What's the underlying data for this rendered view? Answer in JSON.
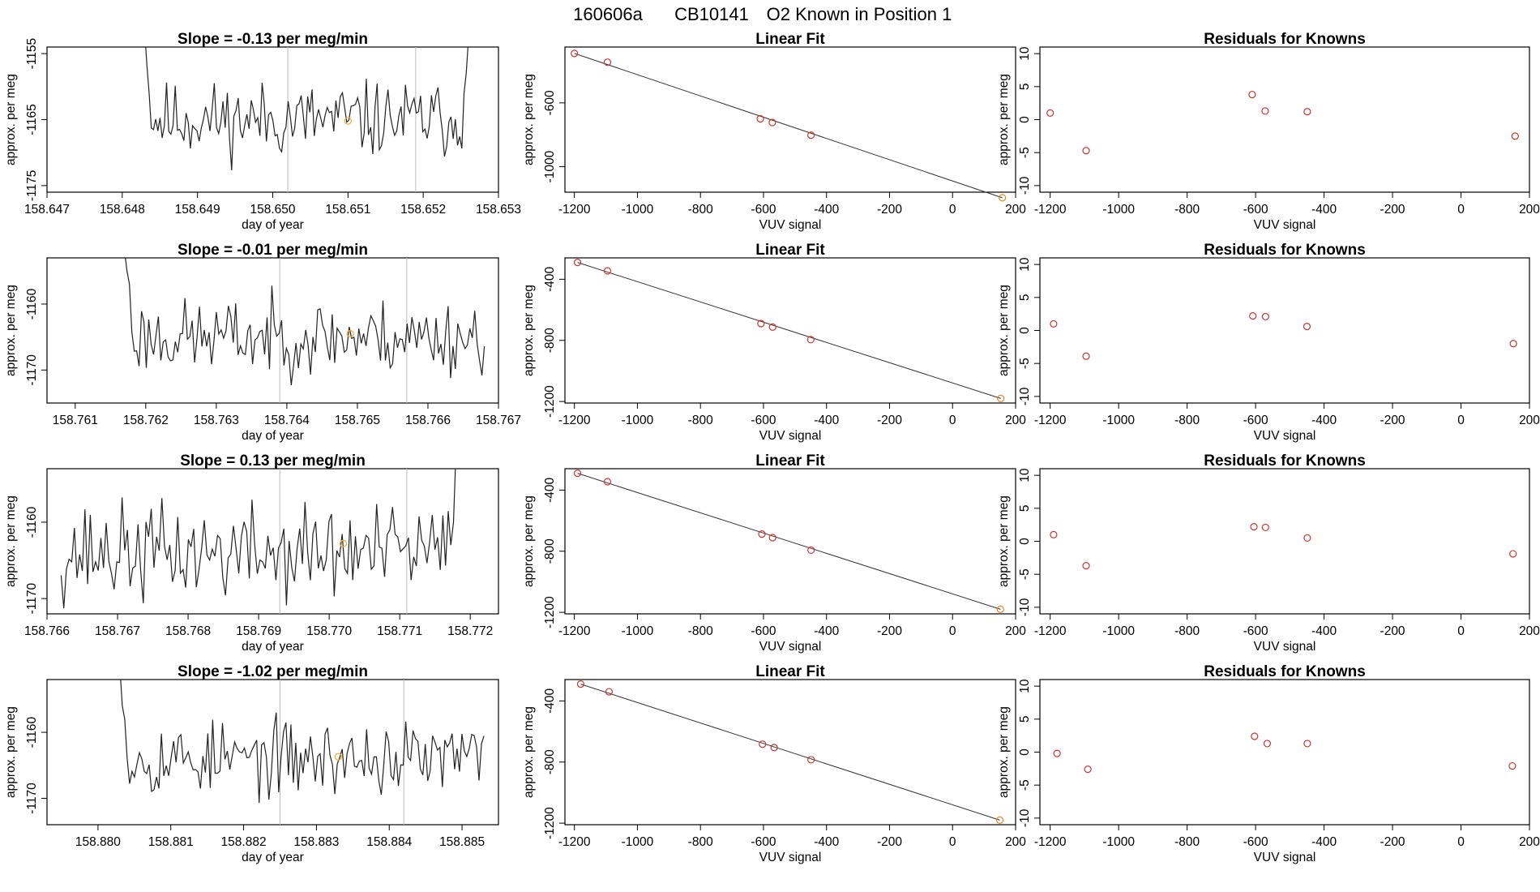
{
  "figure": {
    "title_id": "160606a",
    "title_cylinder": "CB10141",
    "title_desc": "O2 Known in Position  1"
  },
  "chart_data": [
    {
      "type": "line",
      "kind": "timeseries",
      "title": "Slope =  -0.13  per meg/min",
      "xlabel": "day of year",
      "ylabel": "approx. per meg",
      "xlim": [
        158.647,
        158.653
      ],
      "ylim": [
        -1176,
        -1154
      ],
      "xticks": [
        "158.647",
        "158.648",
        "158.649",
        "158.650",
        "158.651",
        "158.652",
        "158.653"
      ],
      "yticks": [
        "-1155",
        "-1165",
        "-1175"
      ],
      "start": 158.6483,
      "end": 158.6526,
      "base_mean": -1165,
      "base_amp": 3.5,
      "seed": 11,
      "head": [
        -1152,
        -1157,
        -1161
      ],
      "tail": [
        -1161,
        -1158,
        -1153
      ],
      "vlines": [
        158.6502,
        158.6519
      ],
      "marker": {
        "x": 158.651,
        "y": -1165.2
      },
      "series": [
        {
          "color": "#222222"
        }
      ]
    },
    {
      "type": "scatter",
      "kind": "fit",
      "title": "Linear Fit",
      "xlabel": "VUV signal",
      "ylabel": "approx. per meg",
      "xlim": [
        -1230,
        200
      ],
      "ylim": [
        -1160,
        -250
      ],
      "xticks": [
        -1200,
        -1000,
        -800,
        -600,
        -400,
        -200,
        0,
        200
      ],
      "yticks": [
        -600,
        -1000
      ],
      "x": [
        -1200,
        -1095,
        -610,
        -572,
        -449,
        158
      ],
      "y": [
        -290,
        -345,
        -700,
        -723,
        -803,
        -1195
      ],
      "line": [
        [
          -1200,
          -290
        ],
        [
          158,
          -1195
        ]
      ],
      "series": [
        {
          "color": "#cc3333"
        }
      ]
    },
    {
      "type": "scatter",
      "kind": "resid",
      "title": "Residuals for Knowns",
      "xlabel": "VUV signal",
      "ylabel": "approx. per meg",
      "xlim": [
        -1230,
        200
      ],
      "ylim": [
        -11,
        11
      ],
      "xticks": [
        -1200,
        -1000,
        -800,
        -600,
        -400,
        -200,
        0,
        200
      ],
      "yticks": [
        10,
        5,
        0,
        -5,
        -10
      ],
      "x": [
        -1200,
        -1095,
        -610,
        -572,
        -449,
        158
      ],
      "y": [
        1.0,
        -4.7,
        3.8,
        1.3,
        1.2,
        -2.5
      ],
      "series": [
        {
          "color": "#cc3333"
        }
      ]
    },
    {
      "type": "line",
      "kind": "timeseries",
      "title": "Slope =  -0.01  per meg/min",
      "xlabel": "day of year",
      "ylabel": "approx. per meg",
      "xlim": [
        158.7606,
        158.767
      ],
      "ylim": [
        -1175,
        -1153
      ],
      "xticks": [
        "158.761",
        "158.762",
        "158.763",
        "158.764",
        "158.765",
        "158.766",
        "158.767"
      ],
      "yticks": [
        "-1160",
        "-1170"
      ],
      "start": 158.7617,
      "end": 158.7668,
      "base_mean": -1165,
      "base_amp": 3.5,
      "seed": 23,
      "head": [
        -1152,
        -1155,
        -1157
      ],
      "tail": [],
      "vlines": [
        158.7639,
        158.7657
      ],
      "marker": {
        "x": 158.7649,
        "y": -1164.5
      },
      "series": [
        {
          "color": "#222222"
        }
      ]
    },
    {
      "type": "scatter",
      "kind": "fit",
      "title": "Linear Fit",
      "xlabel": "VUV signal",
      "ylabel": "approx. per meg",
      "xlim": [
        -1230,
        200
      ],
      "ylim": [
        -1210,
        -260
      ],
      "xticks": [
        -1200,
        -1000,
        -800,
        -600,
        -400,
        -200,
        0,
        200
      ],
      "yticks": [
        -400,
        -800,
        -1200
      ],
      "x": [
        -1190,
        -1095,
        -608,
        -571,
        -450,
        153
      ],
      "y": [
        -290,
        -345,
        -690,
        -713,
        -795,
        -1180
      ],
      "line": [
        [
          -1190,
          -290
        ],
        [
          153,
          -1180
        ]
      ],
      "series": [
        {
          "color": "#cc3333"
        }
      ]
    },
    {
      "type": "scatter",
      "kind": "resid",
      "title": "Residuals for Knowns",
      "xlabel": "VUV signal",
      "ylabel": "approx. per meg",
      "xlim": [
        -1230,
        200
      ],
      "ylim": [
        -11,
        11
      ],
      "xticks": [
        -1200,
        -1000,
        -800,
        -600,
        -400,
        -200,
        0,
        200
      ],
      "yticks": [
        10,
        5,
        0,
        -5,
        -10
      ],
      "x": [
        -1190,
        -1095,
        -608,
        -571,
        -450,
        153
      ],
      "y": [
        1.0,
        -3.9,
        2.2,
        2.1,
        0.6,
        -2.0
      ],
      "series": [
        {
          "color": "#cc3333"
        }
      ]
    },
    {
      "type": "line",
      "kind": "timeseries",
      "title": "Slope =  0.13  per meg/min",
      "xlabel": "day of year",
      "ylabel": "approx. per meg",
      "xlim": [
        158.766,
        158.7724
      ],
      "ylim": [
        -1172,
        -1153
      ],
      "xticks": [
        "158.766",
        "158.767",
        "158.768",
        "158.769",
        "158.770",
        "158.771",
        "158.772"
      ],
      "yticks": [
        "-1160",
        "-1170"
      ],
      "start": 158.7662,
      "end": 158.7718,
      "base_mean": -1164,
      "base_amp": 4.0,
      "seed": 37,
      "head": [],
      "tail": [
        -1163,
        -1160,
        -1150
      ],
      "vlines": [
        158.7693,
        158.7711
      ],
      "marker": {
        "x": 158.7702,
        "y": -1162.8
      },
      "series": [
        {
          "color": "#222222"
        }
      ]
    },
    {
      "type": "scatter",
      "kind": "fit",
      "title": "Linear Fit",
      "xlabel": "VUV signal",
      "ylabel": "approx. per meg",
      "xlim": [
        -1230,
        200
      ],
      "ylim": [
        -1210,
        -260
      ],
      "xticks": [
        -1200,
        -1000,
        -800,
        -600,
        -400,
        -200,
        0,
        200
      ],
      "yticks": [
        -400,
        -800,
        -1200
      ],
      "x": [
        -1190,
        -1095,
        -605,
        -571,
        -449,
        152
      ],
      "y": [
        -290,
        -345,
        -688,
        -711,
        -793,
        -1180
      ],
      "line": [
        [
          -1190,
          -290
        ],
        [
          152,
          -1180
        ]
      ],
      "series": [
        {
          "color": "#cc3333"
        }
      ]
    },
    {
      "type": "scatter",
      "kind": "resid",
      "title": "Residuals for Knowns",
      "xlabel": "VUV signal",
      "ylabel": "approx. per meg",
      "xlim": [
        -1230,
        200
      ],
      "ylim": [
        -11,
        11
      ],
      "xticks": [
        -1200,
        -1000,
        -800,
        -600,
        -400,
        -200,
        0,
        200
      ],
      "yticks": [
        10,
        5,
        0,
        -5,
        -10
      ],
      "x": [
        -1190,
        -1095,
        -605,
        -571,
        -449,
        152
      ],
      "y": [
        1.0,
        -3.7,
        2.2,
        2.1,
        0.5,
        -1.9
      ],
      "series": [
        {
          "color": "#cc3333"
        }
      ]
    },
    {
      "type": "line",
      "kind": "timeseries",
      "title": "Slope =  -1.02  per meg/min",
      "xlabel": "day of year",
      "ylabel": "approx. per meg",
      "xlim": [
        158.8793,
        158.8855
      ],
      "ylim": [
        -1174,
        -1152
      ],
      "xticks": [
        "158.880",
        "158.881",
        "158.882",
        "158.883",
        "158.884",
        "158.885"
      ],
      "yticks": [
        "-1160",
        "-1170"
      ],
      "start": 158.8803,
      "end": 158.8853,
      "base_mean": -1164,
      "base_amp": 3.5,
      "seed": 53,
      "head": [
        -1150,
        -1156,
        -1158
      ],
      "tail": [],
      "vlines": [
        158.8825,
        158.8842
      ],
      "marker": {
        "x": 158.8833,
        "y": -1163.7
      },
      "series": [
        {
          "color": "#222222"
        }
      ]
    },
    {
      "type": "scatter",
      "kind": "fit",
      "title": "Linear Fit",
      "xlabel": "VUV signal",
      "ylabel": "approx. per meg",
      "xlim": [
        -1230,
        200
      ],
      "ylim": [
        -1210,
        -260
      ],
      "xticks": [
        -1200,
        -1000,
        -800,
        -600,
        -400,
        -200,
        0,
        200
      ],
      "yticks": [
        -400,
        -800,
        -1200
      ],
      "x": [
        -1180,
        -1090,
        -603,
        -566,
        -449,
        150
      ],
      "y": [
        -290,
        -340,
        -683,
        -705,
        -785,
        -1180
      ],
      "line": [
        [
          -1180,
          -290
        ],
        [
          150,
          -1180
        ]
      ],
      "series": [
        {
          "color": "#cc3333"
        }
      ]
    },
    {
      "type": "scatter",
      "kind": "resid",
      "title": "Residuals for Knowns",
      "xlabel": "VUV signal",
      "ylabel": "approx. per meg",
      "xlim": [
        -1230,
        200
      ],
      "ylim": [
        -11,
        11
      ],
      "xticks": [
        -1200,
        -1000,
        -800,
        -600,
        -400,
        -200,
        0,
        200
      ],
      "yticks": [
        10,
        5,
        0,
        -5,
        -10
      ],
      "x": [
        -1180,
        -1090,
        -603,
        -566,
        -449,
        150
      ],
      "y": [
        -0.2,
        -2.6,
        2.4,
        1.3,
        1.3,
        -2.1
      ],
      "series": [
        {
          "color": "#cc3333"
        }
      ]
    }
  ]
}
